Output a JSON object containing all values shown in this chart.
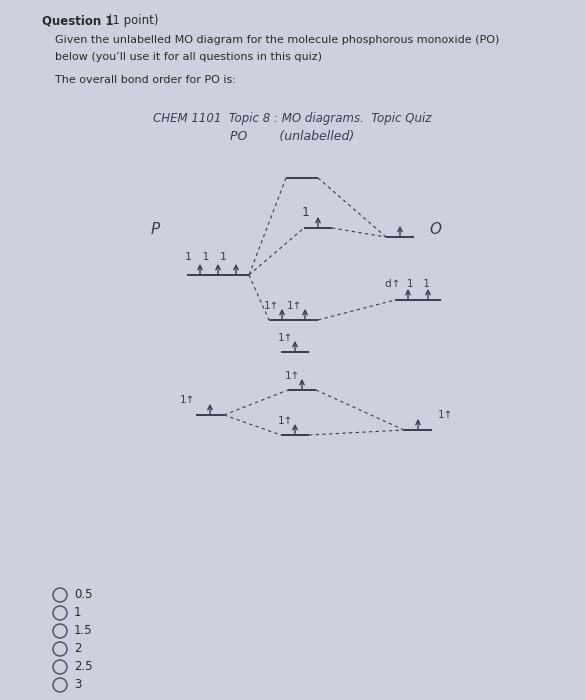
{
  "bg_color": "#ccd1dd",
  "text_color": "#2a2a2a",
  "line_color": "#3a3a4a",
  "dash_color": "#4a4a5a",
  "question_bold": "Question 1",
  "question_normal": " (1 point)",
  "q_line2": "Given the unlabelled MO diagram for the molecule phosphorous monoxide (PO)",
  "q_line3": "below (you’ll use it for all questions in this quiz)",
  "q_line4": "The overall bond order for PO is:",
  "diagram_line1": "CHEM 1101  Topic 8 : MO diagrams.  Topic Quiz",
  "diagram_line2": "PO        (unlabelled)",
  "choices": [
    "0.5",
    "1",
    "1.5",
    "2",
    "2.5",
    "3"
  ],
  "p_label": "P",
  "o_label": "O",
  "ink_color": "#3c3c50"
}
